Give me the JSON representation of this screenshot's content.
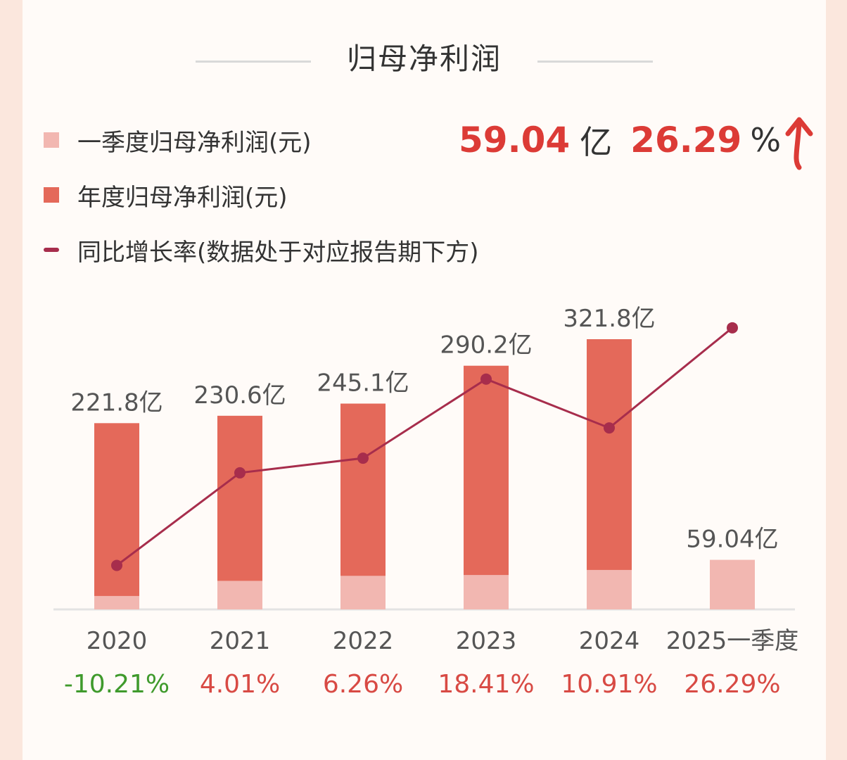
{
  "title": "归母净利润",
  "legend": [
    {
      "label": "一季度归母净利润(元)",
      "color": "#f2b7b1",
      "kind": "square"
    },
    {
      "label": "年度归母净利润(元)",
      "color": "#e4695a",
      "kind": "square"
    },
    {
      "label": "同比增长率(数据处于对应报告期下方)",
      "color": "#a72d4c",
      "kind": "line"
    }
  ],
  "headline": {
    "value": "59.04",
    "unit": "亿",
    "pct": "26.29",
    "pct_sign": "%"
  },
  "colors": {
    "annual": "#e4695a",
    "quarter": "#f2b7b1",
    "line": "#a72d4c",
    "positive": "#d84a44",
    "negative": "#3f9a2c",
    "label": "#555555",
    "axis": "#e3e3e3"
  },
  "chart_data": {
    "type": "bar",
    "categories": [
      "2020",
      "2021",
      "2022",
      "2023",
      "2024",
      "2025一季度"
    ],
    "series": [
      {
        "name": "年度归母净利润(元)",
        "values": [
          221.8,
          230.6,
          245.1,
          290.2,
          321.8,
          null
        ]
      },
      {
        "name": "一季度归母净利润(元)",
        "values": [
          16,
          34,
          40,
          41,
          47,
          59.04
        ]
      },
      {
        "name": "同比增长率(数据处于对应报告期下方)",
        "type": "line",
        "values": [
          -10.21,
          4.01,
          6.26,
          18.41,
          10.91,
          26.29
        ]
      }
    ],
    "value_labels": [
      "221.8亿",
      "230.6亿",
      "245.1亿",
      "290.2亿",
      "321.8亿",
      "59.04亿"
    ],
    "growth_labels": [
      "-10.21%",
      "4.01%",
      "6.26%",
      "18.41%",
      "10.91%",
      "26.29%"
    ],
    "ylim": [
      0,
      321.8
    ],
    "growth_range": [
      -12,
      28
    ],
    "grid": false
  }
}
